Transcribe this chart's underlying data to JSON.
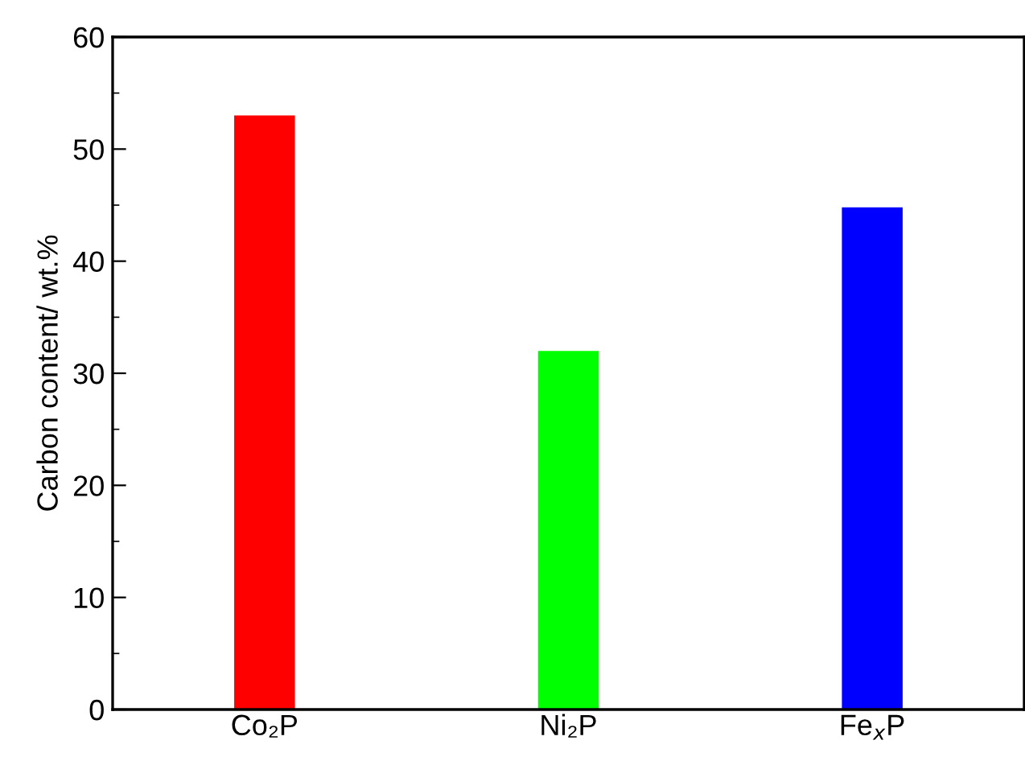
{
  "chart_data": {
    "type": "bar",
    "ylabel": "Carbon content/ wt.%",
    "categories": [
      "Co₂P",
      "Ni₂P",
      "Fe$_{x}$P"
    ],
    "values": [
      53,
      32,
      44.8
    ],
    "colors": [
      "#ff0000",
      "#00ff00",
      "#0000ff"
    ],
    "ylim": [
      0,
      60
    ],
    "yticks": [
      0,
      {
        "value": 5,
        "label": null
      },
      10,
      {
        "value": 15,
        "label": null
      },
      20,
      {
        "value": 25,
        "label": null
      },
      30,
      {
        "value": 35,
        "label": null
      },
      40,
      {
        "value": 45,
        "label": null
      },
      50,
      {
        "value": 55,
        "label": null
      },
      60
    ],
    "grid": false
  }
}
